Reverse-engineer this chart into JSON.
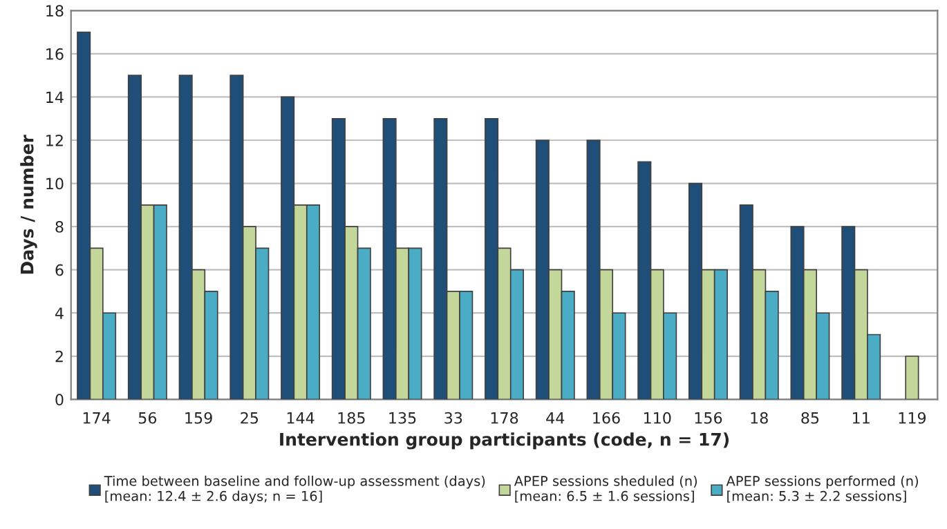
{
  "chart_data": {
    "type": "bar",
    "xlabel": "Intervention group participants (code, n = 17)",
    "ylabel": "Days / number",
    "categories": [
      "174",
      "56",
      "159",
      "25",
      "144",
      "185",
      "135",
      "33",
      "178",
      "44",
      "166",
      "110",
      "156",
      "18",
      "85",
      "11",
      "119"
    ],
    "series": [
      {
        "name": "Time between baseline and follow-up assessment (days)\n[mean: 12.4 ± 2.6 days; n = 16]",
        "color": "#1f4e79",
        "values": [
          17,
          15,
          15,
          15,
          14,
          13,
          13,
          13,
          13,
          12,
          12,
          11,
          10,
          9,
          8,
          8,
          null
        ]
      },
      {
        "name": "APEP sessions sheduled (n)\n[mean: 6.5 ± 1.6 sessions]",
        "color": "#c4d79b",
        "values": [
          7,
          9,
          6,
          8,
          9,
          8,
          7,
          5,
          7,
          6,
          6,
          6,
          6,
          6,
          6,
          6,
          2
        ]
      },
      {
        "name": "APEP sessions performed (n)\n[mean: 5.3 ± 2.2 sessions]",
        "color": "#4bacc6",
        "values": [
          4,
          9,
          5,
          7,
          9,
          7,
          7,
          5,
          6,
          5,
          4,
          4,
          6,
          5,
          4,
          3,
          null
        ]
      }
    ],
    "ylim": [
      0,
      18
    ],
    "yticks": [
      0,
      2,
      4,
      6,
      8,
      10,
      12,
      14,
      16,
      18
    ],
    "grid": "y",
    "legend": "bottom"
  }
}
